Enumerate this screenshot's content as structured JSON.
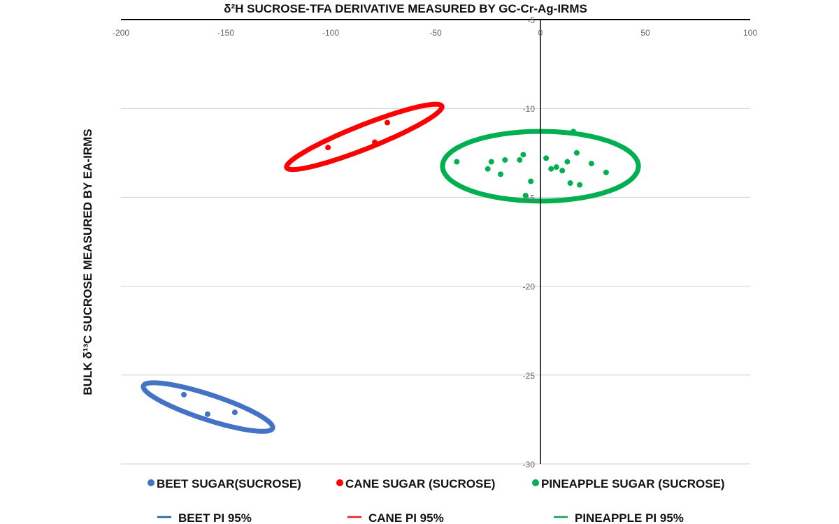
{
  "chart_data": {
    "type": "scatter",
    "title": "δ²H SUCROSE-TFA DERIVATIVE MEASURED BY GC-Cr-Ag-IRMS",
    "xlabel": "δ²H SUCROSE-TFA DERIVATIVE MEASURED BY GC-Cr-Ag-IRMS",
    "ylabel": "BULK δ¹³C SUCROSE MEASURED BY EA-IRMS",
    "xlim": [
      -200,
      100
    ],
    "ylim": [
      -30,
      -5
    ],
    "x_ticks": [
      "-200",
      "-150",
      "-100",
      "-50",
      "0",
      "50",
      "100"
    ],
    "y_ticks": [
      "-5",
      "-10",
      "-15",
      "-20",
      "-25",
      "-30"
    ],
    "grid": "horizontal",
    "x_axis_position": "top",
    "legend_position": "bottom",
    "series": [
      {
        "name": "BEET SUGAR(SUCROSE)",
        "color": "#4472C4",
        "points": [
          [
            -170,
            -26.1
          ],
          [
            -158.7,
            -27.2
          ],
          [
            -145.7,
            -27.1
          ]
        ]
      },
      {
        "name": "CANE SUGAR (SUCROSE)",
        "color": "#FF0000",
        "points": [
          [
            -101.3,
            -12.2
          ],
          [
            -79,
            -11.9
          ],
          [
            -73,
            -10.8
          ]
        ]
      },
      {
        "name": "PINEAPPLE SUGAR (SUCROSE)",
        "color": "#00B050",
        "points": [
          [
            -39.9,
            -13.0
          ],
          [
            -23.4,
            -13.0
          ],
          [
            -25.1,
            -13.4
          ],
          [
            -16.9,
            -12.9
          ],
          [
            -19,
            -13.7
          ],
          [
            -9.9,
            -12.9
          ],
          [
            -8.2,
            -12.6
          ],
          [
            -4.6,
            -14.1
          ],
          [
            -7.1,
            -14.9
          ],
          [
            2.7,
            -12.8
          ],
          [
            5.1,
            -13.4
          ],
          [
            7.6,
            -13.3
          ],
          [
            10.4,
            -13.5
          ],
          [
            12.8,
            -13.0
          ],
          [
            17.3,
            -12.5
          ],
          [
            24.3,
            -13.1
          ],
          [
            31.3,
            -13.6
          ],
          [
            14.2,
            -14.2
          ],
          [
            18.7,
            -14.3
          ],
          [
            15.7,
            -11.3
          ]
        ]
      }
    ],
    "prediction_ellipses": [
      {
        "name": "BEET PI 95%",
        "color": "#4472C4",
        "legend_color": "#1F5FA8",
        "center": [
          -158.5,
          -26.8
        ],
        "axis_a": [
          30.8,
          -1.19
        ],
        "axis_b": [
          -1.85,
          -0.67
        ]
      },
      {
        "name": "CANE PI 95%",
        "color": "#FF0000",
        "legend_color": "#E02020",
        "center": [
          -84,
          -11.6
        ],
        "axis_a": [
          37,
          1.73
        ],
        "axis_b": [
          2.1,
          -0.62
        ]
      },
      {
        "name": "PINEAPPLE PI 95%",
        "color": "#00B050",
        "legend_color": "#1A9A50",
        "center": [
          0,
          -13.25
        ],
        "axis_a": [
          46.7,
          0
        ],
        "axis_b": [
          0,
          1.96
        ]
      }
    ]
  }
}
